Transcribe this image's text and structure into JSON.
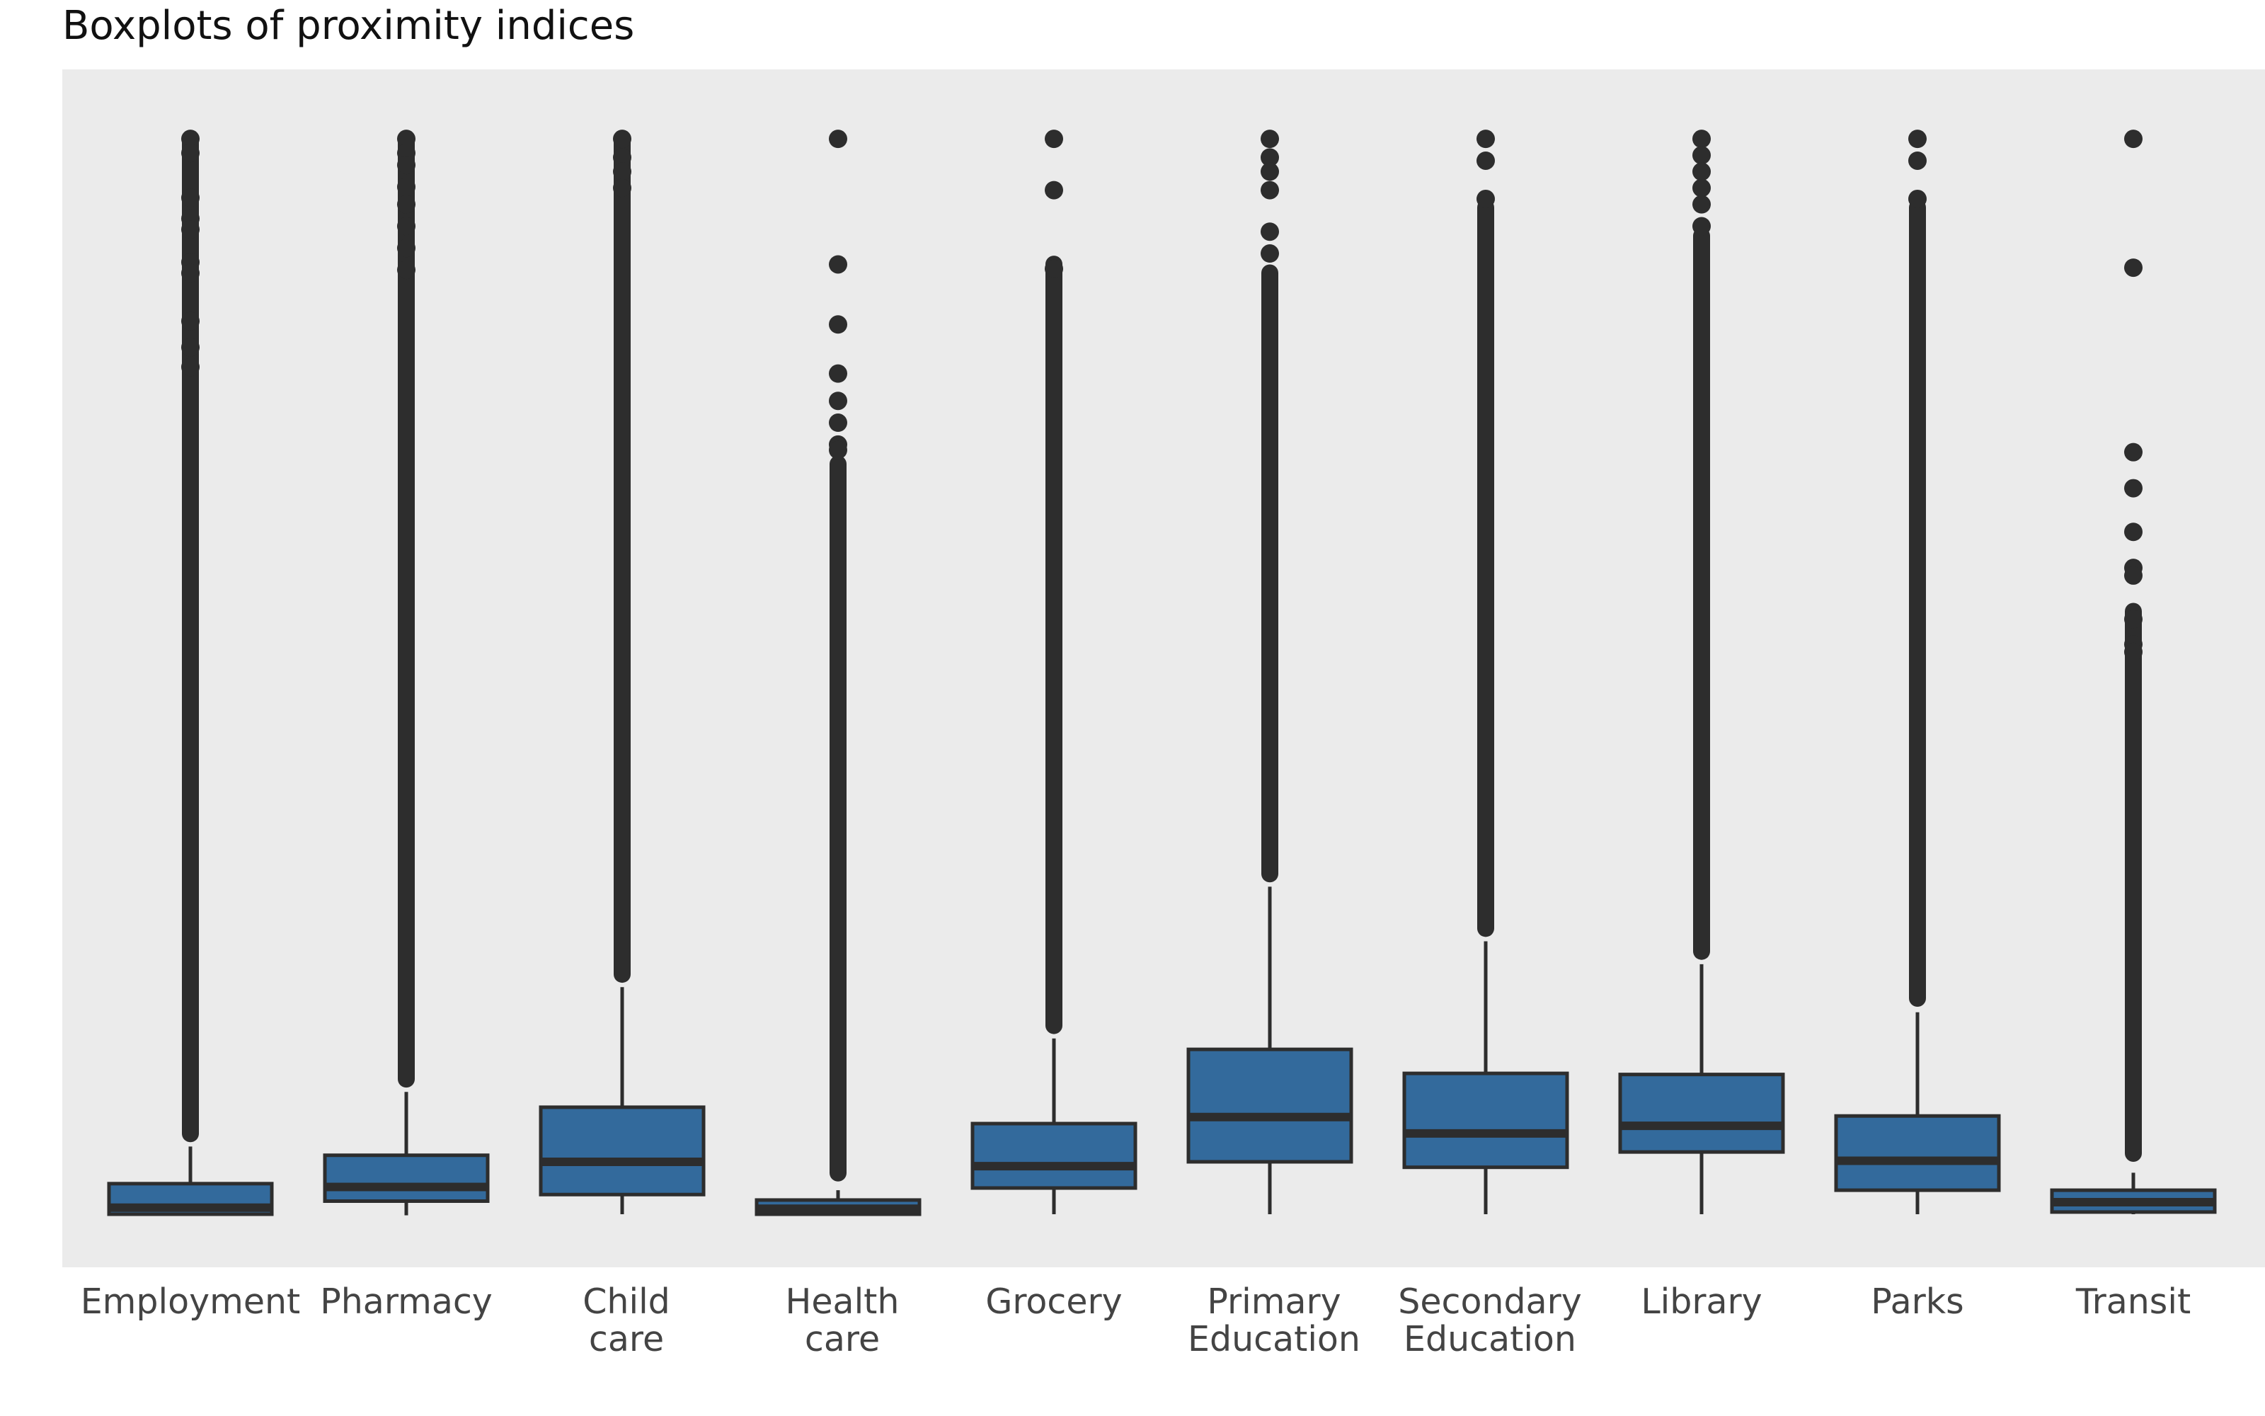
{
  "chart_data": {
    "type": "box",
    "title": "Boxplots of proximity indices",
    "xlabel": "",
    "ylabel": "",
    "y_axis_labels_shown": false,
    "ylim": [
      -0.05,
      1.05
    ],
    "grid": false,
    "background": "#ebebeb",
    "box_color": "#336a9c",
    "edge_color": "#2d2d2d",
    "categories": [
      {
        "label": [
          "Employment"
        ]
      },
      {
        "label": [
          "Pharmacy"
        ]
      },
      {
        "label": [
          "Child",
          "care"
        ]
      },
      {
        "label": [
          "Health",
          "care"
        ]
      },
      {
        "label": [
          "Grocery"
        ]
      },
      {
        "label": [
          "Primary",
          "Education"
        ]
      },
      {
        "label": [
          "Secondary",
          "Education"
        ]
      },
      {
        "label": [
          "Library"
        ]
      },
      {
        "label": [
          "Parks"
        ]
      },
      {
        "label": [
          "Transit"
        ]
      }
    ],
    "boxes": [
      {
        "whisker_low": 0.0,
        "q1": 0.0,
        "median": 0.006,
        "q3": 0.028,
        "whisker_high": 0.062,
        "outlier_range": [
          0.066,
          0.99
        ],
        "outliers": [
          0.985,
          0.972,
          0.931,
          0.912,
          0.902,
          0.872,
          0.862,
          0.818,
          0.794,
          0.776
        ]
      },
      {
        "whisker_low": -0.001,
        "q1": 0.012,
        "median": 0.025,
        "q3": 0.054,
        "whisker_high": 0.112,
        "outlier_range": [
          0.116,
          0.99
        ],
        "outliers": [
          0.985,
          0.972,
          0.961,
          0.941,
          0.925,
          0.905,
          0.885,
          0.865
        ]
      },
      {
        "whisker_low": 0.0,
        "q1": 0.018,
        "median": 0.048,
        "q3": 0.098,
        "whisker_high": 0.208,
        "outlier_range": [
          0.212,
          0.99
        ],
        "outliers": [
          0.985,
          0.968,
          0.955,
          0.94
        ]
      },
      {
        "whisker_low": 0.0,
        "q1": 0.0,
        "median": 0.005,
        "q3": 0.013,
        "whisker_high": 0.022,
        "outlier_range": [
          0.03,
          0.695
        ],
        "outliers": [
          0.985,
          0.87,
          0.815,
          0.77,
          0.745,
          0.725,
          0.705,
          0.7
        ]
      },
      {
        "whisker_low": 0.0,
        "q1": 0.024,
        "median": 0.044,
        "q3": 0.083,
        "whisker_high": 0.161,
        "outlier_range": [
          0.165,
          0.878
        ],
        "outliers": [
          0.985,
          0.938,
          0.866
        ]
      },
      {
        "whisker_low": 0.0,
        "q1": 0.048,
        "median": 0.089,
        "q3": 0.151,
        "whisker_high": 0.3,
        "outlier_range": [
          0.304,
          0.87
        ],
        "outliers": [
          0.985,
          0.968,
          0.955,
          0.938,
          0.9,
          0.88
        ]
      },
      {
        "whisker_low": 0.0,
        "q1": 0.043,
        "median": 0.074,
        "q3": 0.129,
        "whisker_high": 0.25,
        "outlier_range": [
          0.254,
          0.93
        ],
        "outliers": [
          0.985,
          0.965,
          0.93
        ]
      },
      {
        "whisker_low": 0.0,
        "q1": 0.057,
        "median": 0.081,
        "q3": 0.128,
        "whisker_high": 0.229,
        "outlier_range": [
          0.233,
          0.904
        ],
        "outliers": [
          0.985,
          0.97,
          0.955,
          0.94,
          0.925,
          0.905
        ]
      },
      {
        "whisker_low": 0.0,
        "q1": 0.022,
        "median": 0.049,
        "q3": 0.09,
        "whisker_high": 0.185,
        "outlier_range": [
          0.19,
          0.93
        ],
        "outliers": [
          0.985,
          0.965,
          0.93
        ]
      },
      {
        "whisker_low": 0.0,
        "q1": 0.002,
        "median": 0.011,
        "q3": 0.022,
        "whisker_high": 0.038,
        "outlier_range": [
          0.048,
          0.56
        ],
        "outliers": [
          0.985,
          0.867,
          0.698,
          0.665,
          0.625,
          0.592,
          0.585,
          0.545,
          0.522,
          0.515
        ]
      }
    ]
  }
}
